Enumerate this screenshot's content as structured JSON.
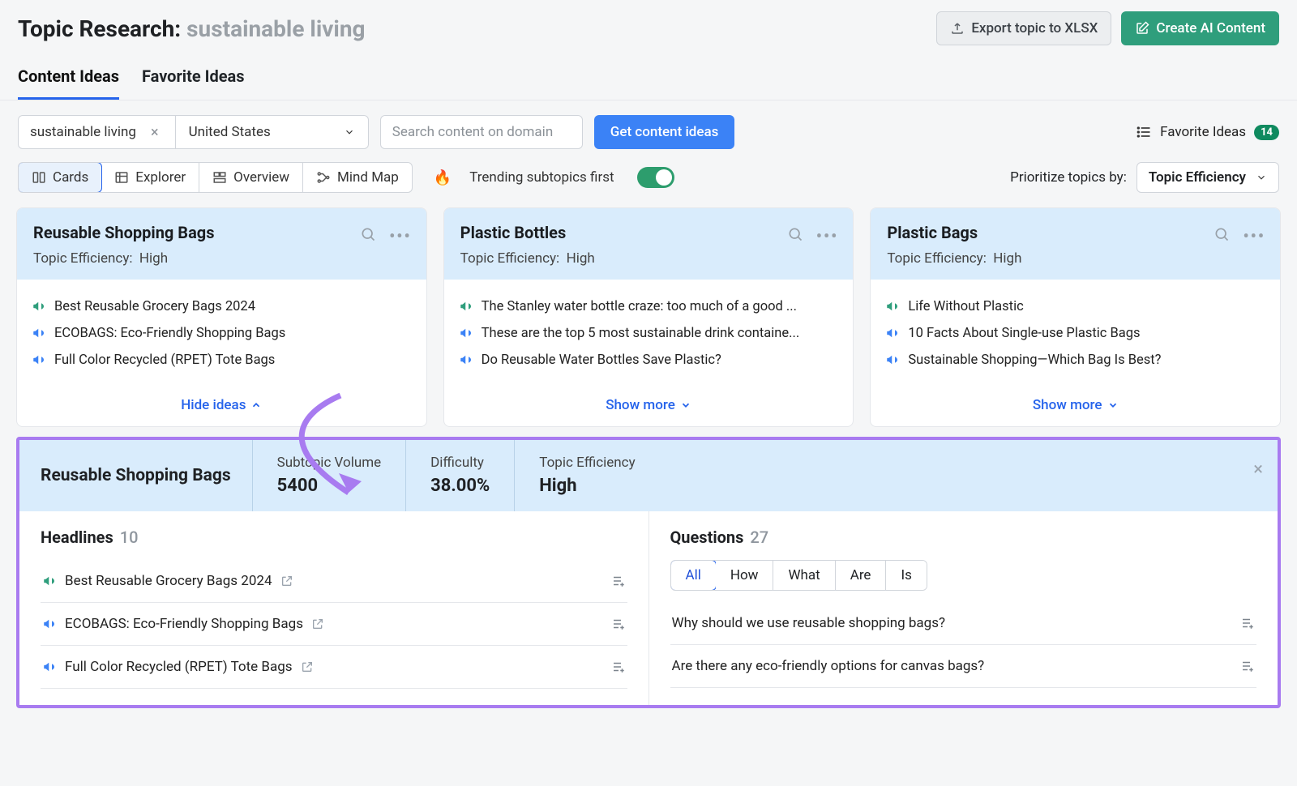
{
  "colors": {
    "green_megaphone": "#2f9e7c",
    "blue_megaphone": "#3b82f6",
    "purple_accent": "#a87bf0",
    "blue_light_bg": "#d9ecfc"
  },
  "header": {
    "title_prefix": "Topic Research:",
    "topic": "sustainable living",
    "export_label": "Export topic to XLSX",
    "create_label": "Create AI Content"
  },
  "tabs": {
    "content": "Content Ideas",
    "favorite": "Favorite Ideas"
  },
  "controls": {
    "search_term": "sustainable living",
    "country": "United States",
    "domain_placeholder": "Search content on domain",
    "get_ideas": "Get content ideas",
    "fav_link": "Favorite Ideas",
    "fav_count": "14"
  },
  "view": {
    "cards": "Cards",
    "explorer": "Explorer",
    "overview": "Overview",
    "mindmap": "Mind Map",
    "trending_label": "Trending subtopics first",
    "prio_label": "Prioritize topics by:",
    "prio_value": "Topic Efficiency"
  },
  "cards": [
    {
      "title": "Reusable Shopping Bags",
      "eff_label": "Topic Efficiency:",
      "eff_value": "High",
      "ideas": [
        {
          "color": "green",
          "text": "Best Reusable Grocery Bags 2024"
        },
        {
          "color": "blue",
          "text": "ECOBAGS: Eco-Friendly Shopping Bags"
        },
        {
          "color": "blue",
          "text": "Full Color Recycled (RPET) Tote Bags"
        }
      ],
      "foot": "Hide ideas"
    },
    {
      "title": "Plastic Bottles",
      "eff_label": "Topic Efficiency:",
      "eff_value": "High",
      "ideas": [
        {
          "color": "green",
          "text": "The Stanley water bottle craze: too much of a good ..."
        },
        {
          "color": "blue",
          "text": "These are the top 5 most sustainable drink containe..."
        },
        {
          "color": "blue",
          "text": "Do Reusable Water Bottles Save Plastic?"
        }
      ],
      "foot": "Show more"
    },
    {
      "title": "Plastic Bags",
      "eff_label": "Topic Efficiency:",
      "eff_value": "High",
      "ideas": [
        {
          "color": "green",
          "text": "Life Without Plastic"
        },
        {
          "color": "blue",
          "text": "10 Facts About Single-use Plastic Bags"
        },
        {
          "color": "blue",
          "text": "Sustainable Shopping—Which Bag Is Best?"
        }
      ],
      "foot": "Show more"
    }
  ],
  "expanded": {
    "title": "Reusable Shopping Bags",
    "metrics": [
      {
        "label": "Subtopic Volume",
        "value": "5400"
      },
      {
        "label": "Difficulty",
        "value": "38.00%"
      },
      {
        "label": "Topic Efficiency",
        "value": "High"
      }
    ],
    "headlines_label": "Headlines",
    "headlines_count": "10",
    "headlines": [
      {
        "color": "green",
        "text": "Best Reusable Grocery Bags 2024"
      },
      {
        "color": "blue",
        "text": "ECOBAGS: Eco-Friendly Shopping Bags"
      },
      {
        "color": "blue",
        "text": "Full Color Recycled (RPET) Tote Bags"
      }
    ],
    "questions_label": "Questions",
    "questions_count": "27",
    "qfilters": [
      "All",
      "How",
      "What",
      "Are",
      "Is"
    ],
    "questions": [
      "Why should we use reusable shopping bags?",
      "Are there any eco-friendly options for canvas bags?"
    ]
  }
}
